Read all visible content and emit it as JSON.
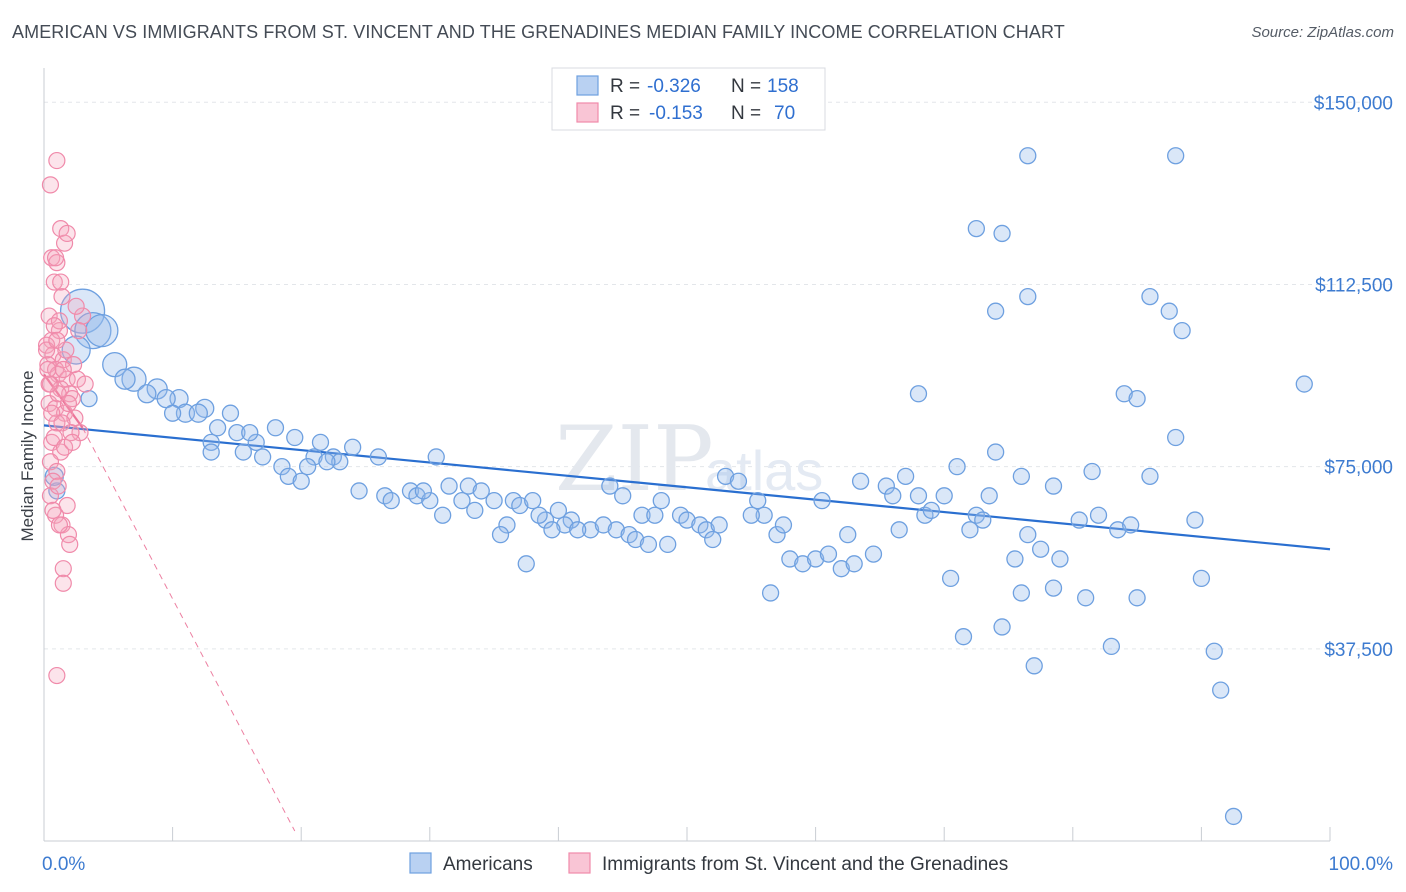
{
  "title": "AMERICAN VS IMMIGRANTS FROM ST. VINCENT AND THE GRENADINES MEDIAN FAMILY INCOME CORRELATION CHART",
  "source": "Source: ZipAtlas.com",
  "watermark": {
    "zip": "ZIP",
    "atlas": "atlas"
  },
  "legend": {
    "r_label": "R =",
    "n_label": "N =",
    "rows": [
      {
        "r": "-0.326",
        "n": "158"
      },
      {
        "r": "-0.153",
        "n": "70"
      }
    ]
  },
  "bottom_legend": [
    "Americans",
    "Immigrants from St. Vincent and the Grenadines"
  ],
  "colors": {
    "blue": "#6ea0e0",
    "blue_line": "#2a6fd0",
    "pink": "#f08aaa",
    "pink_line": "#e8608a",
    "axis_text": "#3d7bd0"
  },
  "chart_data": {
    "type": "scatter",
    "ylabel": "Median Family Income",
    "xlim": [
      0,
      100
    ],
    "ylim": [
      0,
      155000
    ],
    "x_tick_labels": [
      "0.0%",
      "100.0%"
    ],
    "y_ticks": [
      37500,
      75000,
      112500,
      150000
    ],
    "y_tick_labels": [
      "$37,500",
      "$75,000",
      "$112,500",
      "$150,000"
    ],
    "series": [
      {
        "name": "Americans",
        "trend": [
          [
            0,
            83500
          ],
          [
            100,
            58000
          ]
        ],
        "points": [
          [
            3.0,
            107000,
            22
          ],
          [
            3.8,
            103000,
            18
          ],
          [
            2.5,
            99000,
            14
          ],
          [
            4.5,
            103000,
            16
          ],
          [
            5.5,
            96000,
            12
          ],
          [
            7.0,
            93000,
            12
          ],
          [
            6.3,
            93000,
            10
          ],
          [
            8.8,
            91000,
            10
          ],
          [
            8.0,
            90000,
            9
          ],
          [
            10.5,
            89000,
            9
          ],
          [
            9.5,
            89000,
            9
          ],
          [
            12.5,
            87000,
            9
          ],
          [
            11.0,
            86000,
            9
          ],
          [
            12.0,
            86000,
            9
          ],
          [
            14.5,
            86000,
            8
          ],
          [
            13.5,
            83000,
            8
          ],
          [
            15.0,
            82000,
            8
          ],
          [
            16.5,
            80000,
            8
          ],
          [
            13.0,
            80000,
            8
          ],
          [
            15.5,
            78000,
            8
          ],
          [
            18.0,
            83000,
            8
          ],
          [
            17.0,
            77000,
            8
          ],
          [
            19.5,
            81000,
            8
          ],
          [
            21.5,
            80000,
            8
          ],
          [
            21.0,
            77000,
            8
          ],
          [
            22.5,
            77000,
            8
          ],
          [
            23.0,
            76000,
            8
          ],
          [
            18.5,
            75000,
            8
          ],
          [
            20.5,
            75000,
            8
          ],
          [
            22.0,
            76000,
            8
          ],
          [
            24.0,
            79000,
            8
          ],
          [
            19.0,
            73000,
            8
          ],
          [
            20.0,
            72000,
            8
          ],
          [
            26.0,
            77000,
            8
          ],
          [
            30.5,
            77000,
            8
          ],
          [
            24.5,
            70000,
            8
          ],
          [
            26.5,
            69000,
            8
          ],
          [
            27.0,
            68000,
            8
          ],
          [
            28.5,
            70000,
            8
          ],
          [
            29.0,
            69000,
            8
          ],
          [
            30.0,
            68000,
            8
          ],
          [
            29.5,
            70000,
            8
          ],
          [
            31.5,
            71000,
            8
          ],
          [
            32.5,
            68000,
            8
          ],
          [
            33.0,
            71000,
            8
          ],
          [
            34.0,
            70000,
            8
          ],
          [
            35.0,
            68000,
            8
          ],
          [
            36.5,
            68000,
            8
          ],
          [
            37.0,
            67000,
            8
          ],
          [
            38.0,
            68000,
            8
          ],
          [
            31.0,
            65000,
            8
          ],
          [
            33.5,
            66000,
            8
          ],
          [
            36.0,
            63000,
            8
          ],
          [
            39.0,
            64000,
            8
          ],
          [
            40.0,
            66000,
            8
          ],
          [
            41.0,
            64000,
            8
          ],
          [
            40.5,
            63000,
            8
          ],
          [
            42.5,
            62000,
            8
          ],
          [
            43.5,
            63000,
            8
          ],
          [
            38.5,
            65000,
            8
          ],
          [
            39.5,
            62000,
            8
          ],
          [
            44.0,
            71000,
            8
          ],
          [
            45.0,
            69000,
            8
          ],
          [
            46.5,
            65000,
            8
          ],
          [
            47.5,
            65000,
            8
          ],
          [
            48.0,
            68000,
            8
          ],
          [
            49.5,
            65000,
            8
          ],
          [
            50.0,
            64000,
            8
          ],
          [
            51.0,
            63000,
            8
          ],
          [
            51.5,
            62000,
            8
          ],
          [
            52.5,
            63000,
            8
          ],
          [
            53.0,
            73000,
            8
          ],
          [
            54.0,
            72000,
            8
          ],
          [
            55.5,
            68000,
            8
          ],
          [
            56.0,
            65000,
            8
          ],
          [
            57.0,
            61000,
            8
          ],
          [
            57.5,
            63000,
            8
          ],
          [
            44.5,
            62000,
            8
          ],
          [
            45.5,
            61000,
            8
          ],
          [
            46.0,
            60000,
            8
          ],
          [
            47.0,
            59000,
            8
          ],
          [
            35.5,
            61000,
            8
          ],
          [
            41.5,
            62000,
            8
          ],
          [
            37.5,
            55000,
            8
          ],
          [
            58.0,
            56000,
            8
          ],
          [
            59.0,
            55000,
            8
          ],
          [
            60.0,
            56000,
            8
          ],
          [
            61.0,
            57000,
            8
          ],
          [
            62.0,
            54000,
            8
          ],
          [
            63.0,
            55000,
            8
          ],
          [
            64.5,
            57000,
            8
          ],
          [
            56.5,
            49000,
            8
          ],
          [
            63.5,
            72000,
            8
          ],
          [
            65.5,
            71000,
            8
          ],
          [
            66.5,
            62000,
            8
          ],
          [
            67.0,
            73000,
            8
          ],
          [
            68.0,
            69000,
            8
          ],
          [
            68.5,
            65000,
            8
          ],
          [
            70.0,
            69000,
            8
          ],
          [
            71.0,
            75000,
            8
          ],
          [
            72.0,
            62000,
            8
          ],
          [
            72.5,
            65000,
            8
          ],
          [
            73.5,
            69000,
            8
          ],
          [
            74.0,
            78000,
            8
          ],
          [
            75.5,
            56000,
            8
          ],
          [
            76.0,
            73000,
            8
          ],
          [
            76.5,
            61000,
            8
          ],
          [
            77.5,
            58000,
            8
          ],
          [
            78.5,
            71000,
            8
          ],
          [
            79.0,
            56000,
            8
          ],
          [
            80.5,
            64000,
            8
          ],
          [
            81.5,
            74000,
            8
          ],
          [
            82.0,
            65000,
            8
          ],
          [
            83.5,
            62000,
            8
          ],
          [
            84.5,
            63000,
            8
          ],
          [
            86.0,
            73000,
            8
          ],
          [
            70.5,
            52000,
            8
          ],
          [
            76.0,
            49000,
            8
          ],
          [
            78.5,
            50000,
            8
          ],
          [
            81.0,
            48000,
            8
          ],
          [
            85.0,
            48000,
            8
          ],
          [
            90.0,
            52000,
            8
          ],
          [
            91.0,
            37000,
            8
          ],
          [
            71.5,
            40000,
            8
          ],
          [
            74.5,
            42000,
            8
          ],
          [
            77.0,
            34000,
            8
          ],
          [
            83.0,
            38000,
            8
          ],
          [
            88.0,
            81000,
            8
          ],
          [
            89.5,
            64000,
            8
          ],
          [
            68.0,
            90000,
            8
          ],
          [
            76.5,
            110000,
            8
          ],
          [
            74.0,
            107000,
            8
          ],
          [
            72.5,
            124000,
            8
          ],
          [
            74.5,
            123000,
            8
          ],
          [
            76.5,
            139000,
            8
          ],
          [
            86.0,
            110000,
            8
          ],
          [
            87.5,
            107000,
            8
          ],
          [
            88.5,
            103000,
            8
          ],
          [
            84.0,
            90000,
            8
          ],
          [
            85.0,
            89000,
            8
          ],
          [
            88.0,
            139000,
            8
          ],
          [
            98.0,
            92000,
            8
          ],
          [
            91.5,
            29000,
            8
          ],
          [
            92.5,
            3000,
            8
          ],
          [
            13.0,
            78000,
            8
          ],
          [
            16.0,
            82000,
            8
          ],
          [
            10.0,
            86000,
            8
          ],
          [
            60.5,
            68000,
            8
          ],
          [
            55.0,
            65000,
            8
          ],
          [
            52.0,
            60000,
            8
          ],
          [
            48.5,
            59000,
            8
          ],
          [
            66.0,
            69000,
            8
          ],
          [
            62.5,
            61000,
            8
          ],
          [
            69.0,
            66000,
            8
          ],
          [
            73.0,
            64000,
            8
          ],
          [
            3.5,
            89000,
            8
          ],
          [
            1.0,
            70000,
            8
          ],
          [
            0.8,
            73000,
            9
          ]
        ]
      },
      {
        "name": "Immigrants from St. Vincent and the Grenadines",
        "trend": [
          [
            0,
            94000
          ],
          [
            3.0,
            83000
          ]
        ],
        "trend_extension": [
          [
            3.0,
            83000
          ],
          [
            19.5,
            0
          ]
        ],
        "points": [
          [
            1.0,
            138000,
            8
          ],
          [
            0.5,
            133000,
            8
          ],
          [
            1.3,
            124000,
            8
          ],
          [
            1.6,
            121000,
            8
          ],
          [
            0.6,
            118000,
            8
          ],
          [
            1.0,
            117000,
            8
          ],
          [
            0.8,
            113000,
            8
          ],
          [
            1.4,
            110000,
            8
          ],
          [
            0.4,
            106000,
            8
          ],
          [
            1.2,
            103000,
            8
          ],
          [
            0.6,
            101000,
            8
          ],
          [
            0.2,
            100000,
            8
          ],
          [
            0.7,
            98000,
            8
          ],
          [
            1.5,
            97000,
            8
          ],
          [
            0.3,
            96000,
            8
          ],
          [
            0.9,
            95000,
            8
          ],
          [
            1.1,
            94000,
            8
          ],
          [
            1.8,
            93000,
            8
          ],
          [
            0.5,
            92000,
            8
          ],
          [
            1.3,
            91000,
            8
          ],
          [
            2.0,
            90000,
            8
          ],
          [
            2.6,
            93000,
            8
          ],
          [
            2.2,
            89000,
            8
          ],
          [
            0.4,
            88000,
            8
          ],
          [
            0.9,
            87000,
            8
          ],
          [
            1.6,
            86000,
            8
          ],
          [
            2.4,
            85000,
            8
          ],
          [
            1.0,
            84000,
            8
          ],
          [
            2.8,
            82000,
            8
          ],
          [
            0.6,
            80000,
            8
          ],
          [
            1.3,
            78000,
            8
          ],
          [
            0.5,
            76000,
            8
          ],
          [
            1.0,
            74000,
            8
          ],
          [
            0.7,
            72000,
            8
          ],
          [
            0.5,
            69000,
            8
          ],
          [
            1.8,
            67000,
            8
          ],
          [
            0.9,
            65000,
            8
          ],
          [
            1.4,
            63000,
            8
          ],
          [
            1.9,
            61000,
            8
          ],
          [
            2.0,
            59000,
            8
          ],
          [
            1.5,
            54000,
            8
          ],
          [
            1.5,
            51000,
            8
          ],
          [
            1.0,
            32000,
            8
          ],
          [
            3.0,
            106000,
            8
          ],
          [
            2.5,
            108000,
            8
          ],
          [
            1.2,
            105000,
            8
          ],
          [
            0.8,
            104000,
            8
          ],
          [
            1.7,
            99000,
            8
          ],
          [
            2.3,
            96000,
            8
          ],
          [
            3.2,
            92000,
            8
          ],
          [
            0.3,
            95000,
            8
          ],
          [
            1.1,
            90000,
            8
          ],
          [
            1.9,
            88000,
            8
          ],
          [
            0.6,
            86000,
            8
          ],
          [
            1.4,
            84000,
            8
          ],
          [
            2.1,
            82000,
            8
          ],
          [
            0.8,
            81000,
            8
          ],
          [
            1.6,
            79000,
            8
          ],
          [
            2.7,
            103000,
            8
          ],
          [
            0.2,
            99000,
            8
          ],
          [
            1.3,
            113000,
            8
          ],
          [
            0.9,
            118000,
            8
          ],
          [
            1.8,
            123000,
            8
          ],
          [
            1.0,
            101000,
            8
          ],
          [
            1.5,
            95000,
            8
          ],
          [
            0.4,
            92000,
            8
          ],
          [
            2.2,
            80000,
            8
          ],
          [
            1.1,
            71000,
            8
          ],
          [
            0.7,
            66000,
            8
          ],
          [
            1.2,
            63000,
            8
          ]
        ]
      }
    ]
  }
}
